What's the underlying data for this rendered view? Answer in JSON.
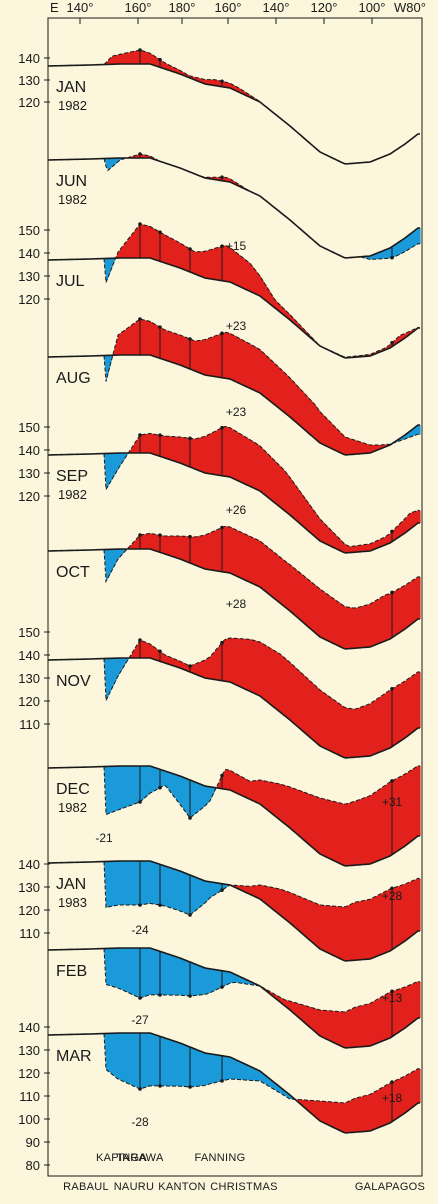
{
  "chart_data": {
    "type": "area",
    "x_axis_labels": [
      "E",
      "140°",
      "160°",
      "180°",
      "160°",
      "140°",
      "120°",
      "100°",
      "W80°"
    ],
    "stations_lower": [
      "RABAUL",
      "NAURU",
      "KANTON",
      "CHRISTMAS",
      "GALAPAGOS"
    ],
    "stations_upper": [
      "KAPINGA",
      "TARAWA",
      "FANNING"
    ],
    "colors": {
      "above_normal": "#e3211c",
      "below_normal": "#1a9ad8",
      "background": "#fbf6dc",
      "line": "#1a1a1a"
    },
    "panels": [
      {
        "month": "JAN",
        "year": "1982",
        "ticks": [
          "140",
          "130",
          "120"
        ],
        "anomaly_label": ""
      },
      {
        "month": "JUN",
        "year": "1982",
        "ticks": [],
        "anomaly_label": ""
      },
      {
        "month": "JUL",
        "year": "",
        "ticks": [
          "150",
          "140",
          "130",
          "120"
        ],
        "anomaly_label": "+15"
      },
      {
        "month": "AUG",
        "year": "",
        "ticks": [],
        "anomaly_label": "+23"
      },
      {
        "month": "SEP",
        "year": "1982",
        "ticks": [
          "150",
          "140",
          "130",
          "120"
        ],
        "anomaly_label": "+23"
      },
      {
        "month": "OCT",
        "year": "",
        "ticks": [],
        "anomaly_label": "+26"
      },
      {
        "month": "NOV",
        "year": "",
        "ticks": [
          "150",
          "140",
          "130",
          "120",
          "110"
        ],
        "anomaly_label": "+28"
      },
      {
        "month": "DEC",
        "year": "1982",
        "ticks": [],
        "anomaly_label": "+31",
        "anomaly_label_2": "-21"
      },
      {
        "month": "JAN",
        "year": "1983",
        "ticks": [
          "140",
          "130",
          "120",
          "110"
        ],
        "anomaly_label": "+28",
        "anomaly_label_2": "-24"
      },
      {
        "month": "FEB",
        "year": "",
        "ticks": [],
        "anomaly_label": "+13",
        "anomaly_label_2": "-27"
      },
      {
        "month": "MAR",
        "year": "",
        "ticks": [
          "140",
          "130",
          "120",
          "110",
          "100",
          "90",
          "80"
        ],
        "anomaly_label": "+18",
        "anomaly_label_2": "-28"
      }
    ]
  }
}
